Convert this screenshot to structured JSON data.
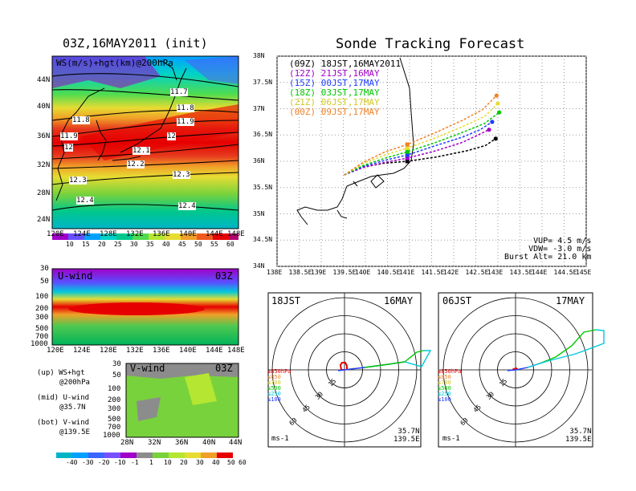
{
  "left_title": "03Z,16MAY2011 (init)",
  "right_title": "Sonde Tracking Forecast",
  "map_panel": {
    "label": "WS(m/s)+hgt(km)@200hPa",
    "lat_ticks": [
      "44N",
      "40N",
      "36N",
      "32N",
      "28N",
      "24N"
    ],
    "lon_ticks": [
      "120E",
      "124E",
      "128E",
      "132E",
      "136E",
      "140E",
      "144E",
      "148E"
    ],
    "contour_labels": [
      "11.7",
      "11.8",
      "11.8",
      "11.9",
      "11.9",
      "12",
      "12",
      "12.1",
      "12.2",
      "12.3",
      "12.3",
      "12.4",
      "12.4"
    ],
    "colorbar_ticks": [
      "10",
      "15",
      "20",
      "25",
      "30",
      "35",
      "40",
      "45",
      "50",
      "55",
      "60"
    ]
  },
  "u_panel": {
    "label": "U-wind",
    "time": "03Z",
    "pressure_ticks": [
      "30",
      "50",
      "100",
      "200",
      "300",
      "500",
      "700",
      "1000"
    ],
    "lon_ticks": [
      "120E",
      "124E",
      "128E",
      "132E",
      "136E",
      "140E",
      "144E",
      "148E"
    ]
  },
  "v_panel": {
    "label": "V-wind",
    "time": "03Z",
    "pressure_ticks": [
      "30",
      "50",
      "100",
      "200",
      "300",
      "500",
      "700",
      "1000"
    ],
    "lat_ticks": [
      "28N",
      "32N",
      "36N",
      "40N",
      "44N"
    ]
  },
  "panel_notes": [
    {
      "tag": "(up)",
      "text": "WS+hgt",
      "sub": "@200hPa"
    },
    {
      "tag": "(mid)",
      "text": "U-wind",
      "sub": "@35.7N"
    },
    {
      "tag": "(bot)",
      "text": "V-wind",
      "sub": "@139.5E"
    }
  ],
  "bottom_colorbar_ticks": [
    "-40",
    "-30",
    "-20",
    "-10",
    "-1",
    "1",
    "10",
    "20",
    "30",
    "40",
    "50",
    "60"
  ],
  "chart_data": {
    "type": "line",
    "title": "Sonde Tracking Forecast",
    "x_ticks": [
      "138E",
      "138.5E",
      "139E",
      "139.5E",
      "140E",
      "140.5E",
      "141E",
      "141.5E",
      "142E",
      "142.5E",
      "143E",
      "143.5E",
      "144E",
      "144.5E",
      "145E"
    ],
    "y_ticks": [
      "38N",
      "37.5N",
      "37N",
      "36.5N",
      "36N",
      "35.5N",
      "35N",
      "34.5N",
      "34N"
    ],
    "xlim": [
      138,
      145
    ],
    "ylim": [
      34,
      38
    ],
    "grid": true,
    "legend": [
      {
        "code": "(09Z)",
        "text": "18JST,16MAY2011",
        "color": "#000000"
      },
      {
        "code": "(12Z)",
        "text": "21JST,16MAY",
        "color": "#a000c8"
      },
      {
        "code": "(15Z)",
        "text": "00JST,17MAY",
        "color": "#1e3cff"
      },
      {
        "code": "(18Z)",
        "text": "03JST,17MAY",
        "color": "#00c800"
      },
      {
        "code": "(21Z)",
        "text": "06JST,17MAY",
        "color": "#e6dc32"
      },
      {
        "code": "(00Z)",
        "text": "09JST,17MAY",
        "color": "#f08228"
      }
    ],
    "series": [
      {
        "name": "(09Z)",
        "color": "#000000",
        "points": [
          [
            139.52,
            35.74
          ],
          [
            139.9,
            35.88
          ],
          [
            140.4,
            35.96
          ],
          [
            140.95,
            36.0
          ],
          [
            141.6,
            36.08
          ],
          [
            142.3,
            36.2
          ],
          [
            142.72,
            36.3
          ],
          [
            142.95,
            36.43
          ]
        ]
      },
      {
        "name": "(12Z)",
        "color": "#a000c8",
        "points": [
          [
            139.52,
            35.74
          ],
          [
            139.95,
            35.88
          ],
          [
            140.45,
            35.98
          ],
          [
            140.95,
            36.06
          ],
          [
            141.6,
            36.2
          ],
          [
            142.2,
            36.36
          ],
          [
            142.55,
            36.5
          ],
          [
            142.8,
            36.6
          ]
        ]
      },
      {
        "name": "(15Z)",
        "color": "#1e3cff",
        "points": [
          [
            139.52,
            35.74
          ],
          [
            139.95,
            35.9
          ],
          [
            140.45,
            36.02
          ],
          [
            140.95,
            36.12
          ],
          [
            141.6,
            36.3
          ],
          [
            142.2,
            36.46
          ],
          [
            142.6,
            36.6
          ],
          [
            142.87,
            36.75
          ]
        ]
      },
      {
        "name": "(18Z)",
        "color": "#00c800",
        "points": [
          [
            139.52,
            35.74
          ],
          [
            139.95,
            35.92
          ],
          [
            140.45,
            36.06
          ],
          [
            140.95,
            36.18
          ],
          [
            141.6,
            36.36
          ],
          [
            142.2,
            36.55
          ],
          [
            142.7,
            36.72
          ],
          [
            143.03,
            36.93
          ]
        ]
      },
      {
        "name": "(21Z)",
        "color": "#e6dc32",
        "points": [
          [
            139.52,
            35.74
          ],
          [
            139.95,
            35.96
          ],
          [
            140.45,
            36.12
          ],
          [
            140.95,
            36.25
          ],
          [
            141.6,
            36.45
          ],
          [
            142.2,
            36.66
          ],
          [
            142.7,
            36.85
          ],
          [
            143.0,
            37.1
          ]
        ]
      },
      {
        "name": "(00Z)",
        "color": "#f08228",
        "points": [
          [
            139.52,
            35.74
          ],
          [
            139.95,
            35.98
          ],
          [
            140.45,
            36.18
          ],
          [
            140.95,
            36.32
          ],
          [
            141.6,
            36.55
          ],
          [
            142.2,
            36.78
          ],
          [
            142.65,
            36.98
          ],
          [
            142.97,
            37.25
          ]
        ]
      }
    ],
    "annotations": [
      "VUP=  4.5 m/s",
      "VDW= -3.0 m/s",
      "Burst Alt= 21.0 km"
    ]
  },
  "hodographs": [
    {
      "time": "18JST",
      "date": "16MAY",
      "rings": [
        15,
        30,
        45,
        60
      ],
      "ring_labels": [
        "15",
        "30",
        "45",
        "60"
      ],
      "levels": [
        "≥850hPa",
        "≤850",
        "≤700",
        "≤500",
        "≤250",
        "≤100"
      ],
      "level_colors": [
        "#e60000",
        "#f08228",
        "#e6dc32",
        "#00c800",
        "#00c8dc",
        "#1e3cff"
      ],
      "units": "ms-1",
      "lat": "35.7N",
      "lon": "139.5E",
      "segments": [
        {
          "color": "#e60000",
          "points": [
            [
              0,
              0
            ],
            [
              -4,
              0
            ],
            [
              -5,
              6
            ],
            [
              -3,
              9
            ],
            [
              1,
              9
            ],
            [
              3,
              5
            ],
            [
              3,
              0
            ]
          ]
        },
        {
          "color": "#f08228",
          "points": [
            [
              3,
              0
            ],
            [
              6,
              1
            ]
          ]
        },
        {
          "color": "#e6dc32",
          "points": [
            [
              6,
              1
            ],
            [
              12,
              2
            ]
          ]
        },
        {
          "color": "#1e3cff",
          "points": [
            [
              -8,
              -1
            ],
            [
              0,
              0
            ],
            [
              25,
              3
            ],
            [
              55,
              7
            ],
            [
              75,
              10
            ]
          ]
        },
        {
          "color": "#00c800",
          "points": [
            [
              25,
              3
            ],
            [
              55,
              7
            ],
            [
              75,
              10
            ],
            [
              90,
              22
            ],
            [
              98,
              24
            ]
          ]
        },
        {
          "color": "#00c8dc",
          "points": [
            [
              98,
              24
            ],
            [
              107,
              24
            ],
            [
              96,
              4
            ],
            [
              75,
              10
            ]
          ]
        }
      ]
    },
    {
      "time": "06JST",
      "date": "17MAY",
      "rings": [
        15,
        30,
        45,
        60
      ],
      "ring_labels": [
        "15",
        "30",
        "45",
        "60"
      ],
      "levels": [
        "≥850hPa",
        "≤850",
        "≤700",
        "≤500",
        "≤250",
        "≤100"
      ],
      "level_colors": [
        "#e60000",
        "#f08228",
        "#e6dc32",
        "#00c800",
        "#00c8dc",
        "#1e3cff"
      ],
      "units": "ms-1",
      "lat": "35.7N",
      "lon": "139.5E",
      "segments": [
        {
          "color": "#e60000",
          "points": [
            [
              0,
              0
            ],
            [
              -2,
              1
            ],
            [
              1,
              2
            ],
            [
              3,
              0
            ]
          ]
        },
        {
          "color": "#1e3cff",
          "points": [
            [
              -10,
              -1
            ],
            [
              0,
              0
            ],
            [
              15,
              3
            ],
            [
              30,
              8
            ]
          ]
        },
        {
          "color": "#00c800",
          "points": [
            [
              30,
              8
            ],
            [
              50,
              16
            ],
            [
              70,
              30
            ],
            [
              85,
              47
            ],
            [
              100,
              50
            ]
          ]
        },
        {
          "color": "#00c8dc",
          "points": [
            [
              100,
              50
            ],
            [
              110,
              49
            ],
            [
              110,
              33
            ],
            [
              75,
              20
            ],
            [
              40,
              11
            ],
            [
              15,
              3
            ]
          ]
        }
      ]
    }
  ]
}
